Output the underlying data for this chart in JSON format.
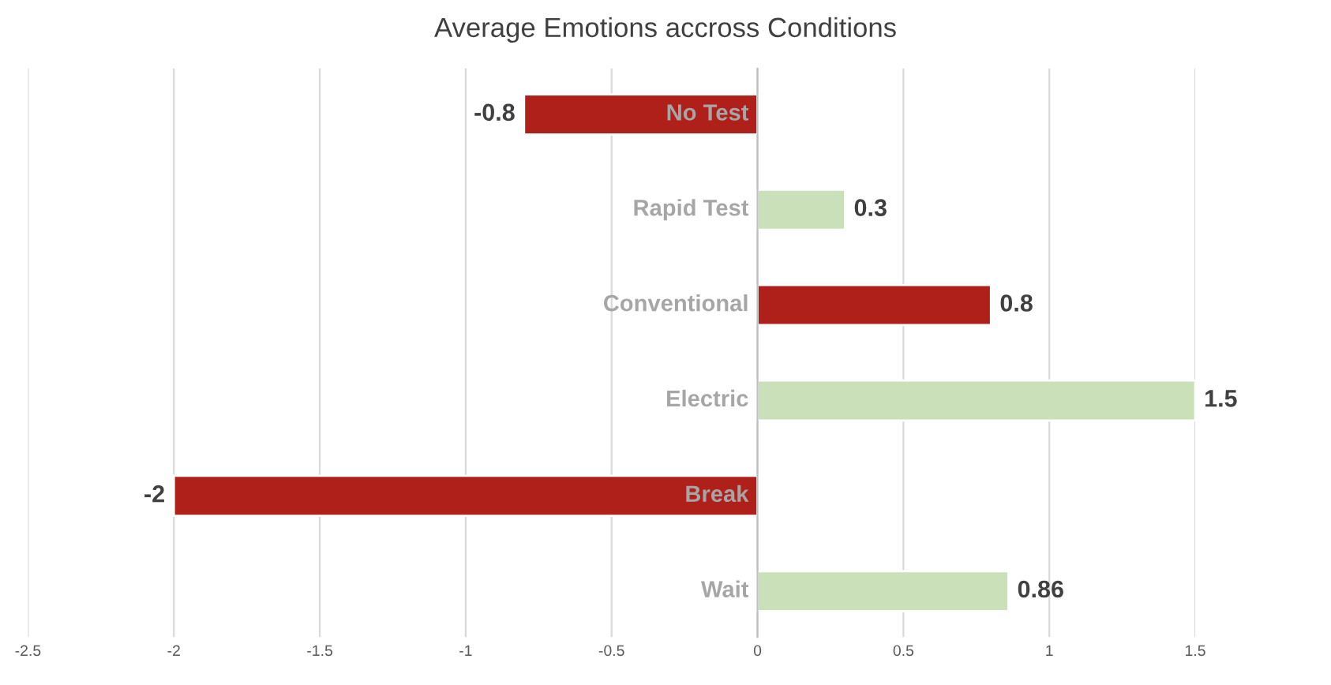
{
  "chart_data": {
    "type": "bar",
    "orientation": "horizontal",
    "title": "Average Emotions accross Conditions",
    "categories": [
      "No Test",
      "Rapid Test",
      "Conventional",
      "Electric",
      "Break",
      "Wait"
    ],
    "values": [
      -0.8,
      0.3,
      0.8,
      1.5,
      -2,
      0.86
    ],
    "colors": [
      "#b0201a",
      "#c9e0b8",
      "#b0201a",
      "#c9e0b8",
      "#b0201a",
      "#c9e0b8"
    ],
    "xlim": [
      -2.5,
      1.5
    ],
    "xticks": [
      -2.5,
      -2,
      -1.5,
      -1,
      -0.5,
      0,
      0.5,
      1,
      1.5
    ],
    "grid": "x",
    "data_labels": true
  }
}
